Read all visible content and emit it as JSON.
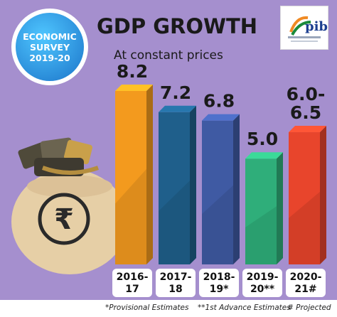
{
  "badge": {
    "line1": "ECONOMIC",
    "line2": "SURVEY",
    "line3": "2019-20"
  },
  "logo": {
    "text": "pib"
  },
  "chart_data": {
    "type": "bar",
    "title": "GDP GROWTH",
    "subtitle": "At constant prices",
    "categories": [
      "2016-17",
      "2017-18",
      "2018-19*",
      "2019-20**",
      "2020-21#"
    ],
    "category_lines": [
      [
        "2016-",
        "17"
      ],
      [
        "2017-",
        "18"
      ],
      [
        "2018-",
        "19*"
      ],
      [
        "2019-",
        "20**"
      ],
      [
        "2020-",
        "21#"
      ]
    ],
    "values": [
      8.2,
      7.2,
      6.8,
      5.0,
      6.25
    ],
    "value_labels": [
      [
        "8.2"
      ],
      [
        "7.2"
      ],
      [
        "6.8"
      ],
      [
        "5.0"
      ],
      [
        "6.0-",
        "6.5"
      ]
    ],
    "ylim": [
      0,
      8.2
    ],
    "colors": [
      "#f39a1e",
      "#1f5f8b",
      "#3f5aa3",
      "#2fae7a",
      "#e8452c"
    ],
    "footnotes": [
      "*Provisional Estimates",
      "**1st Advance Estimates",
      "# Projected"
    ]
  }
}
